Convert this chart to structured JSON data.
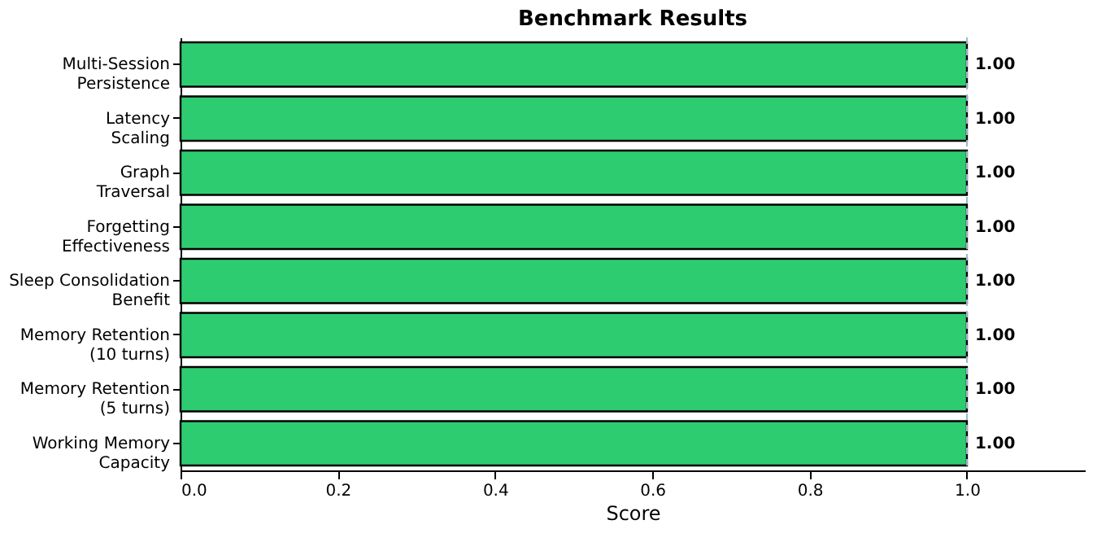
{
  "chart_data": {
    "type": "bar",
    "orientation": "horizontal",
    "title": "Benchmark Results",
    "xlabel": "Score",
    "categories": [
      "Multi-Session\nPersistence",
      "Latency\nScaling",
      "Graph\nTraversal",
      "Forgetting\nEffectiveness",
      "Sleep Consolidation\nBenefit",
      "Memory Retention\n(10 turns)",
      "Memory Retention\n(5 turns)",
      "Working Memory\nCapacity"
    ],
    "values": [
      1.0,
      1.0,
      1.0,
      1.0,
      1.0,
      1.0,
      1.0,
      1.0
    ],
    "value_labels": [
      "1.00",
      "1.00",
      "1.00",
      "1.00",
      "1.00",
      "1.00",
      "1.00",
      "1.00"
    ],
    "color": "#2ecc71",
    "xlim": [
      0,
      1.15
    ],
    "xticks": [
      {
        "value": 0,
        "label": "0.0"
      },
      0.2,
      0.4,
      0.6,
      0.8,
      {
        "value": 1,
        "label": "1.0"
      }
    ],
    "ref_lines": [
      {
        "axis": "x",
        "value": 1.0,
        "color": "#9db4cc",
        "line_style": "dashed"
      }
    ],
    "grid": false
  }
}
